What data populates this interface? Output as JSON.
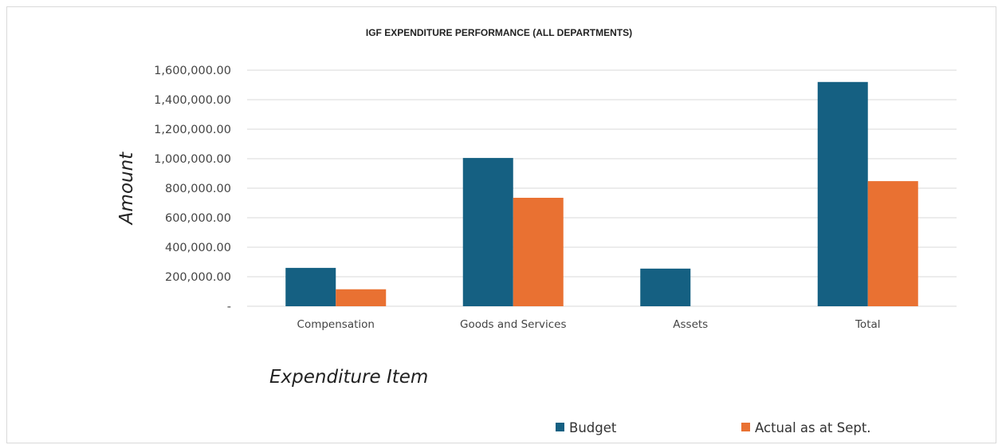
{
  "chart_data": {
    "type": "bar",
    "title": "IGF EXPENDITURE PERFORMANCE (ALL DEPARTMENTS)",
    "xlabel": "Expenditure Item",
    "ylabel": "Amount",
    "categories": [
      "Compensation",
      "Goods and Services",
      "Assets",
      "Total"
    ],
    "series": [
      {
        "name": "Budget",
        "color": "#156082",
        "values": [
          260000,
          1005000,
          255000,
          1520000
        ]
      },
      {
        "name": "Actual as at Sept.",
        "color": "#E97132",
        "values": [
          115000,
          735000,
          0,
          848000
        ]
      }
    ],
    "ylim": [
      0,
      1600000
    ],
    "yticks": [
      0,
      200000,
      400000,
      600000,
      800000,
      1000000,
      1200000,
      1400000,
      1600000
    ],
    "ytick_labels": [
      "-",
      "200,000.00",
      "400,000.00",
      "600,000.00",
      "800,000.00",
      "1,000,000.00",
      "1,200,000.00",
      "1,400,000.00",
      "1,600,000.00"
    ],
    "grid": true,
    "legend_position": "bottom"
  }
}
